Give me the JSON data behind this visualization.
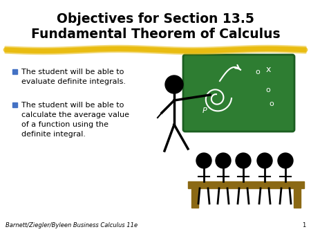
{
  "title_line1": "Objectives for Section 13.5",
  "title_line2": "Fundamental Theorem of Calculus",
  "title_fontsize": 13.5,
  "title_color": "#000000",
  "background_color": "#ffffff",
  "underline_color": "#E8B800",
  "bullet_color": "#4472C4",
  "bullet1_line1": "The student will be able to",
  "bullet1_line2": "evaluate definite integrals.",
  "bullet2_line1": "The student will be able to",
  "bullet2_line2": "calculate the average value",
  "bullet2_line3": "of a function using the",
  "bullet2_line4": "definite integral.",
  "footer_text": "Barnett/Ziegler/Byleen Business Calculus 11e",
  "footer_page": "1",
  "footer_fontsize": 6,
  "text_fontsize": 8,
  "board_color": "#2E7D32",
  "board_edge_color": "#1B5E20",
  "bench_color": "#8B6914",
  "stick_color": "#000000"
}
